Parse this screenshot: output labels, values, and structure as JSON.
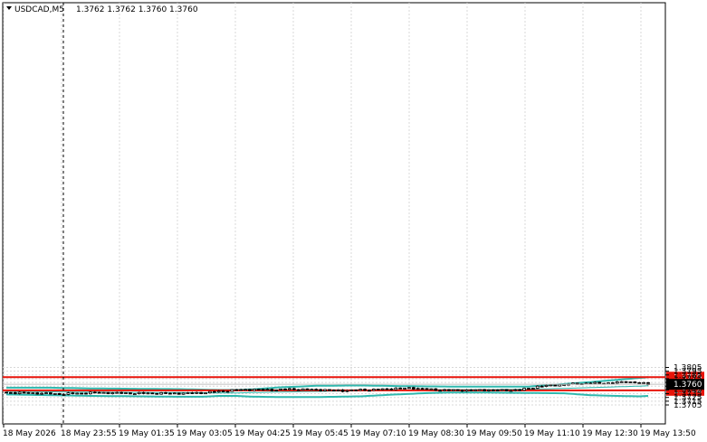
{
  "header": {
    "symbol": "USDCAD,M5",
    "ohlc": "1.3762 1.3762 1.3760 1.3760"
  },
  "chart_data": {
    "type": "candlestick",
    "x_labels": [
      "18 May 2026",
      "18 May 23:55",
      "19 May 01:35",
      "19 May 03:05",
      "19 May 04:25",
      "19 May 05:45",
      "19 May 07:10",
      "19 May 08:30",
      "19 May 09:50",
      "19 May 11:10",
      "19 May 12:30",
      "19 May 13:50"
    ],
    "y_ticks": [
      "1.3805",
      "1.3795",
      "1.3785",
      "1.3775",
      "1.3765",
      "1.3755",
      "1.3745",
      "1.3735",
      "1.3725",
      "1.3715",
      "1.3705"
    ],
    "ylim": [
      1.37,
      1.381
    ],
    "bar_count": 146,
    "grid": true,
    "levels": [
      {
        "label": "1.3779",
        "value": 1.3779,
        "color": "#e8140a"
      },
      {
        "label": "1.3744",
        "value": 1.3744,
        "color": "#e8140a"
      }
    ],
    "current_price": {
      "label": "1.3760",
      "value": 1.376
    },
    "price_anchors": [
      [
        0,
        1.3738
      ],
      [
        4,
        1.3737
      ],
      [
        8,
        1.3736
      ],
      [
        12,
        1.3734
      ],
      [
        16,
        1.3736
      ],
      [
        20,
        1.3738
      ],
      [
        24,
        1.3737
      ],
      [
        28,
        1.3736
      ],
      [
        32,
        1.3736
      ],
      [
        36,
        1.3736
      ],
      [
        40,
        1.3736
      ],
      [
        44,
        1.3737
      ],
      [
        48,
        1.3741
      ],
      [
        52,
        1.3745
      ],
      [
        56,
        1.3746
      ],
      [
        60,
        1.3745
      ],
      [
        64,
        1.3747
      ],
      [
        68,
        1.3746
      ],
      [
        72,
        1.3745
      ],
      [
        76,
        1.3743
      ],
      [
        80,
        1.3745
      ],
      [
        84,
        1.3746
      ],
      [
        88,
        1.3749
      ],
      [
        92,
        1.375
      ],
      [
        96,
        1.3746
      ],
      [
        100,
        1.3744
      ],
      [
        104,
        1.3744
      ],
      [
        108,
        1.3745
      ],
      [
        112,
        1.3744
      ],
      [
        116,
        1.3745
      ],
      [
        120,
        1.3754
      ],
      [
        124,
        1.3758
      ],
      [
        128,
        1.3761
      ],
      [
        132,
        1.3763
      ],
      [
        136,
        1.3763
      ],
      [
        140,
        1.3767
      ],
      [
        145,
        1.3761
      ]
    ],
    "bollinger_middle": [
      [
        0,
        1.3741
      ],
      [
        20,
        1.3739
      ],
      [
        40,
        1.3738
      ],
      [
        48,
        1.3737
      ],
      [
        52,
        1.3737
      ],
      [
        60,
        1.3739
      ],
      [
        70,
        1.3741
      ],
      [
        80,
        1.3743
      ],
      [
        90,
        1.3745
      ],
      [
        100,
        1.3746
      ],
      [
        110,
        1.3746
      ],
      [
        118,
        1.3747
      ],
      [
        126,
        1.3749
      ],
      [
        134,
        1.3752
      ],
      [
        140,
        1.3754
      ],
      [
        145,
        1.3756
      ]
    ],
    "bollinger_upper": [
      [
        0,
        1.3751
      ],
      [
        10,
        1.3751
      ],
      [
        20,
        1.3749
      ],
      [
        30,
        1.3748
      ],
      [
        40,
        1.3747
      ],
      [
        48,
        1.3745
      ],
      [
        52,
        1.3745
      ],
      [
        56,
        1.3747
      ],
      [
        62,
        1.3752
      ],
      [
        70,
        1.3756
      ],
      [
        80,
        1.3757
      ],
      [
        90,
        1.3755
      ],
      [
        100,
        1.3754
      ],
      [
        110,
        1.3754
      ],
      [
        118,
        1.3754
      ],
      [
        124,
        1.3759
      ],
      [
        132,
        1.3766
      ],
      [
        138,
        1.3772
      ],
      [
        142,
        1.3776
      ],
      [
        145,
        1.3779
      ]
    ],
    "bollinger_lower": [
      [
        0,
        1.3733
      ],
      [
        10,
        1.3731
      ],
      [
        20,
        1.3729
      ],
      [
        30,
        1.3728
      ],
      [
        38,
        1.3727
      ],
      [
        44,
        1.3727
      ],
      [
        48,
        1.3729
      ],
      [
        52,
        1.3729
      ],
      [
        56,
        1.3727
      ],
      [
        62,
        1.3726
      ],
      [
        70,
        1.3726
      ],
      [
        80,
        1.3728
      ],
      [
        88,
        1.3733
      ],
      [
        96,
        1.3737
      ],
      [
        100,
        1.3738
      ],
      [
        108,
        1.3738
      ],
      [
        118,
        1.3737
      ],
      [
        126,
        1.3736
      ],
      [
        132,
        1.3731
      ],
      [
        138,
        1.3729
      ],
      [
        143,
        1.3728
      ],
      [
        145,
        1.3729
      ]
    ]
  }
}
